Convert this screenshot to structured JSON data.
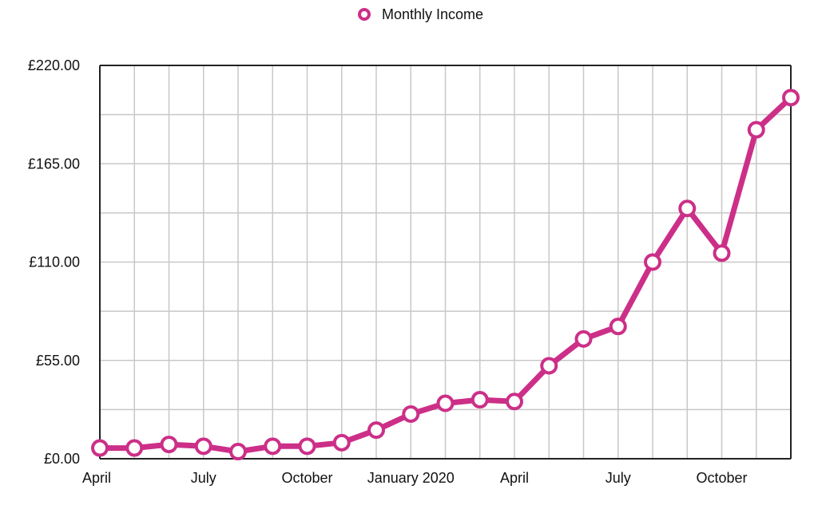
{
  "chart_data": {
    "type": "line",
    "legend": {
      "placement": "top-center"
    },
    "grid": true,
    "ylim": [
      0,
      220
    ],
    "y_ticks": [
      "£0.00",
      "£55.00",
      "£110.00",
      "£165.00",
      "£220.00"
    ],
    "y_tick_values": [
      0,
      55,
      110,
      165,
      220
    ],
    "x": [
      "2019-04",
      "2019-05",
      "2019-06",
      "2019-07",
      "2019-08",
      "2019-09",
      "2019-10",
      "2019-11",
      "2019-12",
      "2020-01",
      "2020-02",
      "2020-03",
      "2020-04",
      "2020-05",
      "2020-06",
      "2020-07",
      "2020-08",
      "2020-09",
      "2020-10",
      "2020-11",
      "2020-12"
    ],
    "x_tick_labels": [
      {
        "label": "April",
        "at": "2019-04"
      },
      {
        "label": "July",
        "at": "2019-07"
      },
      {
        "label": "October",
        "at": "2019-10"
      },
      {
        "label": "January 2020",
        "at": "2020-01"
      },
      {
        "label": "April",
        "at": "2020-04"
      },
      {
        "label": "July",
        "at": "2020-07"
      },
      {
        "label": "October",
        "at": "2020-10"
      }
    ],
    "series": [
      {
        "name": "Monthly Income",
        "color": "#cc2f88",
        "values": [
          6,
          6,
          8,
          7,
          4,
          7,
          7,
          9,
          16,
          25,
          31,
          33,
          32,
          52,
          67,
          74,
          110,
          140,
          115,
          184,
          202
        ]
      }
    ]
  }
}
